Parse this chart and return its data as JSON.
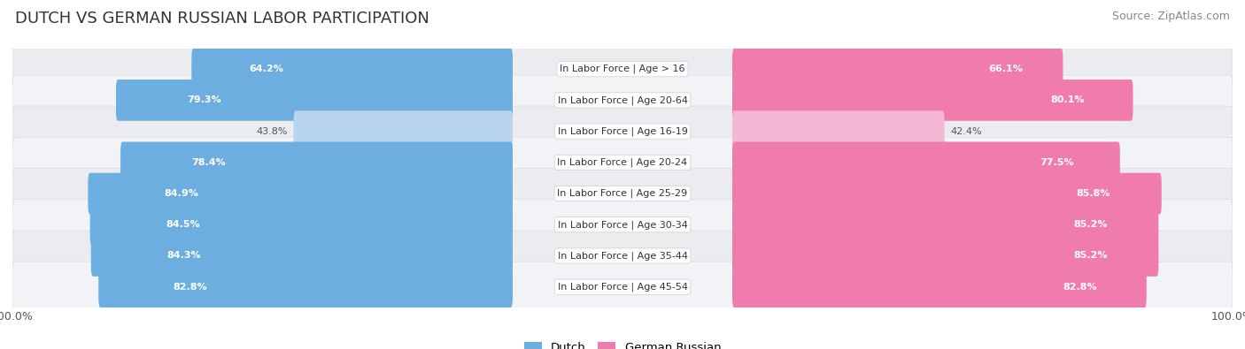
{
  "title": "DUTCH VS GERMAN RUSSIAN LABOR PARTICIPATION",
  "source": "Source: ZipAtlas.com",
  "categories": [
    "In Labor Force | Age > 16",
    "In Labor Force | Age 20-64",
    "In Labor Force | Age 16-19",
    "In Labor Force | Age 20-24",
    "In Labor Force | Age 25-29",
    "In Labor Force | Age 30-34",
    "In Labor Force | Age 35-44",
    "In Labor Force | Age 45-54"
  ],
  "dutch_values": [
    64.2,
    79.3,
    43.8,
    78.4,
    84.9,
    84.5,
    84.3,
    82.8
  ],
  "german_russian_values": [
    66.1,
    80.1,
    42.4,
    77.5,
    85.8,
    85.2,
    85.2,
    82.8
  ],
  "dutch_color": "#6DAEE0",
  "dutch_color_light": "#B8D4EE",
  "german_russian_color": "#F07BAD",
  "german_russian_color_light": "#F5B8D4",
  "bg_color": "#FFFFFF",
  "row_bg": "#F0F0F4",
  "x_max": 100.0,
  "legend_dutch": "Dutch",
  "legend_german_russian": "German Russian",
  "title_fontsize": 13,
  "source_fontsize": 9,
  "label_fontsize": 8.5,
  "value_fontsize": 8.0
}
